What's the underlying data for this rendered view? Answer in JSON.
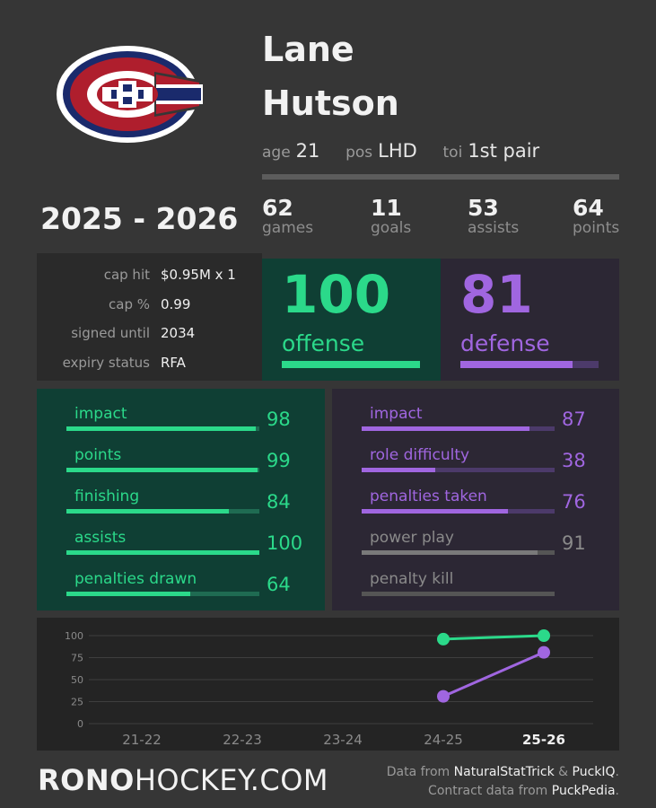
{
  "player": {
    "first_name": "Lane",
    "last_name": "Hutson"
  },
  "meta": {
    "age_label": "age",
    "age": "21",
    "pos_label": "pos",
    "pos": "LHD",
    "toi_label": "toi",
    "toi": "1st pair"
  },
  "season": "2025 - 2026",
  "stats": [
    {
      "value": "62",
      "label": "games"
    },
    {
      "value": "11",
      "label": "goals"
    },
    {
      "value": "53",
      "label": "assists"
    },
    {
      "value": "64",
      "label": "points"
    }
  ],
  "contract": [
    {
      "label": "cap hit",
      "value": "$0.95M x 1"
    },
    {
      "label": "cap %",
      "value": "0.99"
    },
    {
      "label": "signed until",
      "value": "2034"
    },
    {
      "label": "expiry status",
      "value": "RFA"
    }
  ],
  "offense": {
    "score": "100",
    "label": "offense",
    "fraction": 1.0
  },
  "defense": {
    "score": "81",
    "label": "defense",
    "fraction": 0.81
  },
  "offense_metrics": [
    {
      "label": "impact",
      "value": "98",
      "fraction": 0.98
    },
    {
      "label": "points",
      "value": "99",
      "fraction": 0.99
    },
    {
      "label": "finishing",
      "value": "84",
      "fraction": 0.84
    },
    {
      "label": "assists",
      "value": "100",
      "fraction": 1.0
    },
    {
      "label": "penalties drawn",
      "value": "64",
      "fraction": 0.64
    }
  ],
  "defense_metrics": [
    {
      "label": "impact",
      "value": "87",
      "fraction": 0.87,
      "active": true
    },
    {
      "label": "role difficulty",
      "value": "38",
      "fraction": 0.38,
      "active": true
    },
    {
      "label": "penalties taken",
      "value": "76",
      "fraction": 0.76,
      "active": true
    },
    {
      "label": "power play",
      "value": "91",
      "fraction": 0.91,
      "active": false
    },
    {
      "label": "penalty kill",
      "value": "",
      "fraction": 0,
      "active": false
    }
  ],
  "colors": {
    "offense": "#2bd98a",
    "defense": "#a066e0",
    "muted": "#6a6a6a"
  },
  "chart_data": {
    "type": "line",
    "categories": [
      "21-22",
      "22-23",
      "23-24",
      "24-25",
      "25-26"
    ],
    "yticks": [
      100,
      75,
      50,
      25,
      0
    ],
    "ylim": [
      0,
      100
    ],
    "series": [
      {
        "values": [
          null,
          null,
          null,
          96,
          100
        ],
        "color": "#2bd98a"
      },
      {
        "values": [
          null,
          null,
          null,
          31,
          81
        ],
        "color": "#a066e0"
      }
    ],
    "highlight_category": "25-26"
  },
  "brand": {
    "bold": "RONO",
    "rest": "HOCKEY.COM"
  },
  "credits": {
    "line1_prefix": "Data from ",
    "source1": "NaturalStatTrick",
    "amp": " & ",
    "source2": "PuckIQ",
    "dot1": ".",
    "line2_prefix": "Contract data from ",
    "source3": "PuckPedia",
    "dot2": "."
  }
}
